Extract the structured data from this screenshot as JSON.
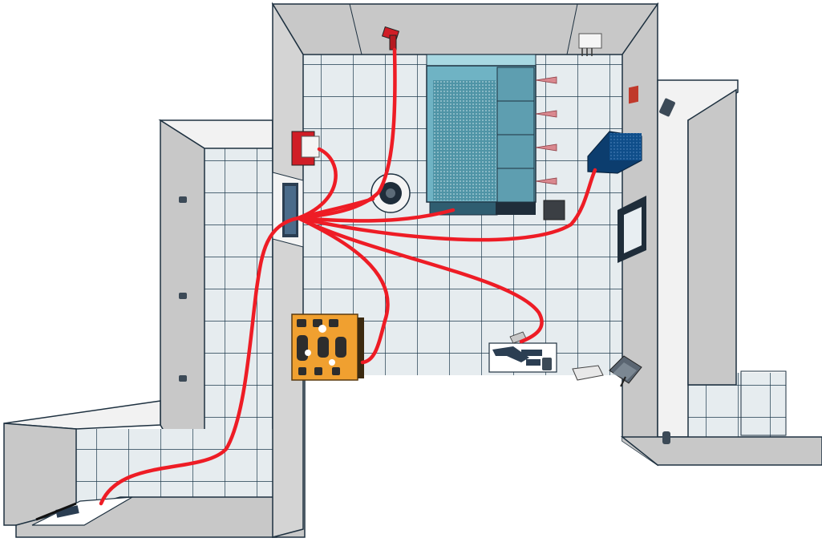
{
  "scene": {
    "view": "isometric-top-down",
    "colors": {
      "background": "#ffffff",
      "floor": "#e6ecef",
      "floor_grid": "#1f3b4d",
      "wall_face": "#c8c8c8",
      "wall_top": "#f2f2f2",
      "wall_edge": "#1e3140",
      "cable": "#ee1c25",
      "rack_glass": "#6fb3c4",
      "blue_cabinet": "#0f4e8a",
      "control_board": "#f0a030",
      "red_device": "#d01d26"
    },
    "rooms": [
      "left-corridor-room",
      "bottom-left-room",
      "central-server-room",
      "right-room"
    ],
    "devices": [
      "ceiling-camera",
      "red-alarm-panel",
      "wall-patch-panel",
      "round-floor-fan",
      "server-rack",
      "rack-side-shelves",
      "blue-network-cabinet",
      "grey-floor-box",
      "wall-mounted-monitor",
      "orange-control-board",
      "desk-workstation",
      "office-chair",
      "wall-outlet-plate",
      "floor-printer",
      "wall-sconces",
      "bottom-left-desk"
    ],
    "cables": [
      "camera-cable",
      "alarm-cable",
      "fan-cable",
      "rack-cable",
      "cabinet-cable",
      "board-cable",
      "desk-cable",
      "bottom-left-cable"
    ]
  }
}
